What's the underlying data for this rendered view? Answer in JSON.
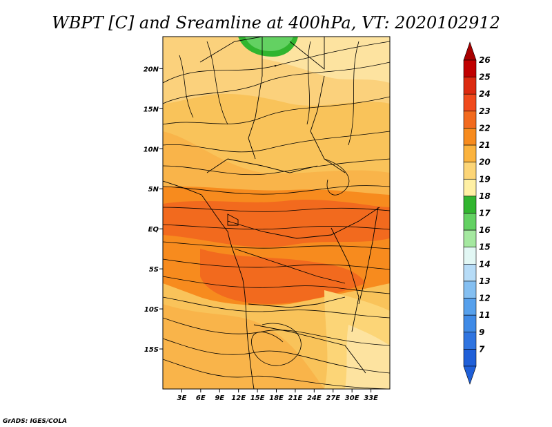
{
  "title": "WBPT [C] and Sreamline at 400hPa, VT: 2020102912",
  "credit": "GrADS: IGES/COLA",
  "map": {
    "lon_range": [
      0,
      36
    ],
    "lat_range": [
      -20,
      24
    ],
    "y_ticks": [
      {
        "label": "20N",
        "lat": 20
      },
      {
        "label": "15N",
        "lat": 15
      },
      {
        "label": "10N",
        "lat": 10
      },
      {
        "label": "5N",
        "lat": 5
      },
      {
        "label": "EQ",
        "lat": 0
      },
      {
        "label": "5S",
        "lat": -5
      },
      {
        "label": "10S",
        "lat": -10
      },
      {
        "label": "15S",
        "lat": -15
      }
    ],
    "x_ticks": [
      {
        "label": "3E",
        "lon": 3
      },
      {
        "label": "6E",
        "lon": 6
      },
      {
        "label": "9E",
        "lon": 9
      },
      {
        "label": "12E",
        "lon": 12
      },
      {
        "label": "15E",
        "lon": 15
      },
      {
        "label": "18E",
        "lon": 18
      },
      {
        "label": "21E",
        "lon": 21
      },
      {
        "label": "24E",
        "lon": 24
      },
      {
        "label": "27E",
        "lon": 27
      },
      {
        "label": "30E",
        "lon": 30
      },
      {
        "label": "33E",
        "lon": 33
      }
    ]
  },
  "colorbar": {
    "top_color": "#a80000",
    "bottom_color": "#1f5fd8",
    "bins": [
      {
        "label": "26",
        "color": "#c00000"
      },
      {
        "label": "25",
        "color": "#dc2a10"
      },
      {
        "label": "24",
        "color": "#f04a1c"
      },
      {
        "label": "23",
        "color": "#f26a1e"
      },
      {
        "label": "22",
        "color": "#f78b1e"
      },
      {
        "label": "21",
        "color": "#fbb33e"
      },
      {
        "label": "20",
        "color": "#fcd577"
      },
      {
        "label": "19",
        "color": "#fff0a4"
      },
      {
        "label": "18",
        "color": "#31b52f"
      },
      {
        "label": "17",
        "color": "#63d162"
      },
      {
        "label": "16",
        "color": "#a5e8a0"
      },
      {
        "label": "15",
        "color": "#e2f7f4"
      },
      {
        "label": "14",
        "color": "#b7dcf7"
      },
      {
        "label": "13",
        "color": "#84bff1"
      },
      {
        "label": "12",
        "color": "#56a0ec"
      },
      {
        "label": "11",
        "color": "#3f8ae6"
      },
      {
        "label": "9",
        "color": "#2f74e0"
      },
      {
        "label": "7",
        "color": "#1f5fd8"
      }
    ]
  }
}
